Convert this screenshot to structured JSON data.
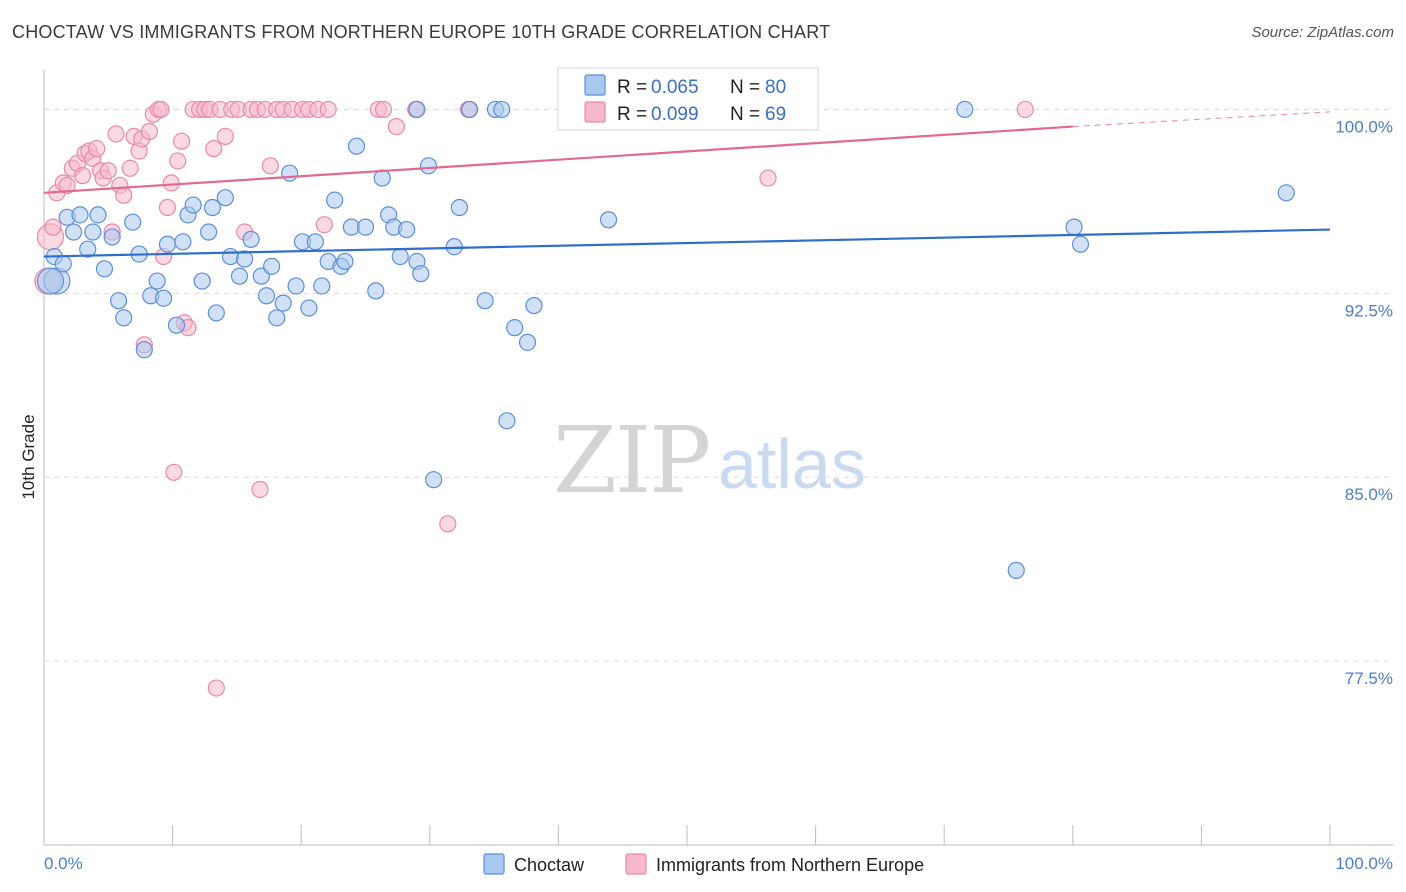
{
  "title": "CHOCTAW VS IMMIGRANTS FROM NORTHERN EUROPE 10TH GRADE CORRELATION CHART",
  "source": "Source: ZipAtlas.com",
  "watermark": {
    "zip": "ZIP",
    "atlas": "atlas"
  },
  "colors": {
    "choctaw_fill": "#a9c8f0",
    "choctaw_stroke": "#5b8fd8",
    "choctaw_line": "#2f6fc9",
    "immig_fill": "#f6b9cc",
    "immig_stroke": "#e98aa8",
    "immig_line": "#e2698f",
    "grid": "#dcdcdc",
    "tick_text": "#4a7fc9"
  },
  "legend": {
    "rows": [
      {
        "r_label": "R =",
        "r_value": "0.065",
        "n_label": "N =",
        "n_value": "80"
      },
      {
        "r_label": "R =",
        "r_value": "0.099",
        "n_label": "N =",
        "n_value": "69"
      }
    ]
  },
  "bottom_legend": [
    "Choctaw",
    "Immigrants from Northern Europe"
  ],
  "chart_data": {
    "type": "scatter",
    "title": "CHOCTAW VS IMMIGRANTS FROM NORTHERN EUROPE 10TH GRADE CORRELATION CHART",
    "xlabel": "",
    "ylabel": "10th Grade",
    "xlim": [
      0,
      100
    ],
    "ylim": [
      70.0,
      101.2
    ],
    "x_tick_labels": [
      "0.0%",
      "100.0%"
    ],
    "y_ticks": [
      77.5,
      85.0,
      92.5,
      100.0
    ],
    "y_tick_labels": [
      "77.5%",
      "85.0%",
      "92.5%",
      "100.0%"
    ],
    "grid": true,
    "legend_position": "top-center",
    "series": [
      {
        "name": "Choctaw",
        "r": 0.065,
        "n": 80,
        "trend": {
          "x": [
            0,
            100
          ],
          "y": [
            94.0,
            95.1
          ],
          "style": "solid"
        },
        "points": [
          [
            1.0,
            93.0
          ],
          [
            0.8,
            94.0
          ],
          [
            1.5,
            93.7
          ],
          [
            1.8,
            95.6
          ],
          [
            2.3,
            95.0
          ],
          [
            2.8,
            95.7
          ],
          [
            3.4,
            94.3
          ],
          [
            3.8,
            95.0
          ],
          [
            4.2,
            95.7
          ],
          [
            4.7,
            93.5
          ],
          [
            5.3,
            94.8
          ],
          [
            5.8,
            92.2
          ],
          [
            6.2,
            91.5
          ],
          [
            6.9,
            95.4
          ],
          [
            7.4,
            94.1
          ],
          [
            7.8,
            90.2
          ],
          [
            8.3,
            92.4
          ],
          [
            8.8,
            93.0
          ],
          [
            9.3,
            92.3
          ],
          [
            9.6,
            94.5
          ],
          [
            10.3,
            91.2
          ],
          [
            10.8,
            94.6
          ],
          [
            11.2,
            95.7
          ],
          [
            11.6,
            96.1
          ],
          [
            12.3,
            93.0
          ],
          [
            12.8,
            95.0
          ],
          [
            13.1,
            96.0
          ],
          [
            13.4,
            91.7
          ],
          [
            14.1,
            96.4
          ],
          [
            14.5,
            94.0
          ],
          [
            15.2,
            93.2
          ],
          [
            15.6,
            93.9
          ],
          [
            16.1,
            94.7
          ],
          [
            16.9,
            93.2
          ],
          [
            17.3,
            92.4
          ],
          [
            17.7,
            93.6
          ],
          [
            18.1,
            91.5
          ],
          [
            18.6,
            92.1
          ],
          [
            19.1,
            97.4
          ],
          [
            19.6,
            92.8
          ],
          [
            20.1,
            94.6
          ],
          [
            20.6,
            91.9
          ],
          [
            21.1,
            94.6
          ],
          [
            21.6,
            92.8
          ],
          [
            22.1,
            93.8
          ],
          [
            22.6,
            96.3
          ],
          [
            23.1,
            93.6
          ],
          [
            23.4,
            93.8
          ],
          [
            23.9,
            95.2
          ],
          [
            24.3,
            98.5
          ],
          [
            25.0,
            95.2
          ],
          [
            25.8,
            92.6
          ],
          [
            26.3,
            97.2
          ],
          [
            26.8,
            95.7
          ],
          [
            27.2,
            95.2
          ],
          [
            27.7,
            94.0
          ],
          [
            28.2,
            95.1
          ],
          [
            29.0,
            93.8
          ],
          [
            29.3,
            93.3
          ],
          [
            29.9,
            97.7
          ],
          [
            29.0,
            100.0
          ],
          [
            31.9,
            94.4
          ],
          [
            32.3,
            96.0
          ],
          [
            33.1,
            100.0
          ],
          [
            34.3,
            92.2
          ],
          [
            35.1,
            100.0
          ],
          [
            35.6,
            100.0
          ],
          [
            36.0,
            87.3
          ],
          [
            36.6,
            91.1
          ],
          [
            37.6,
            90.5
          ],
          [
            38.1,
            92.0
          ],
          [
            30.3,
            84.9
          ],
          [
            43.9,
            95.5
          ],
          [
            45.4,
            100.0
          ],
          [
            71.6,
            100.0
          ],
          [
            75.6,
            81.2
          ],
          [
            80.1,
            95.2
          ],
          [
            80.6,
            94.5
          ],
          [
            96.6,
            96.6
          ],
          [
            0.5,
            93.0
          ]
        ]
      },
      {
        "name": "Immigrants from Northern Europe",
        "r": 0.099,
        "n": 69,
        "trend": {
          "x": [
            0,
            80,
            100
          ],
          "y": [
            96.6,
            99.3,
            99.9
          ],
          "solid_until": 80
        },
        "points": [
          [
            0.3,
            93.0
          ],
          [
            0.5,
            94.8
          ],
          [
            0.7,
            95.2
          ],
          [
            1.0,
            96.6
          ],
          [
            1.5,
            97.0
          ],
          [
            1.8,
            96.9
          ],
          [
            2.2,
            97.6
          ],
          [
            2.6,
            97.8
          ],
          [
            3.0,
            97.3
          ],
          [
            3.2,
            98.2
          ],
          [
            3.5,
            98.3
          ],
          [
            3.8,
            98.0
          ],
          [
            4.1,
            98.4
          ],
          [
            4.4,
            97.5
          ],
          [
            4.6,
            97.2
          ],
          [
            5.0,
            97.5
          ],
          [
            5.3,
            95.0
          ],
          [
            5.6,
            99.0
          ],
          [
            5.9,
            96.9
          ],
          [
            6.2,
            96.5
          ],
          [
            6.7,
            97.6
          ],
          [
            7.0,
            98.9
          ],
          [
            7.4,
            98.3
          ],
          [
            7.6,
            98.8
          ],
          [
            7.8,
            90.4
          ],
          [
            8.2,
            99.1
          ],
          [
            8.5,
            99.8
          ],
          [
            8.9,
            100.0
          ],
          [
            9.1,
            100.0
          ],
          [
            9.3,
            94.0
          ],
          [
            9.6,
            96.0
          ],
          [
            9.9,
            97.0
          ],
          [
            10.1,
            85.2
          ],
          [
            10.4,
            97.9
          ],
          [
            10.7,
            98.7
          ],
          [
            10.9,
            91.3
          ],
          [
            11.2,
            91.1
          ],
          [
            11.6,
            100.0
          ],
          [
            12.1,
            100.0
          ],
          [
            12.5,
            100.0
          ],
          [
            12.9,
            100.0
          ],
          [
            13.2,
            98.4
          ],
          [
            13.4,
            76.4
          ],
          [
            13.7,
            100.0
          ],
          [
            14.1,
            98.9
          ],
          [
            14.6,
            100.0
          ],
          [
            15.1,
            100.0
          ],
          [
            15.6,
            95.0
          ],
          [
            16.1,
            100.0
          ],
          [
            16.6,
            100.0
          ],
          [
            16.8,
            84.5
          ],
          [
            17.2,
            100.0
          ],
          [
            17.6,
            97.7
          ],
          [
            18.1,
            100.0
          ],
          [
            18.6,
            100.0
          ],
          [
            19.3,
            100.0
          ],
          [
            20.1,
            100.0
          ],
          [
            20.6,
            100.0
          ],
          [
            21.3,
            100.0
          ],
          [
            21.8,
            95.3
          ],
          [
            22.1,
            100.0
          ],
          [
            26.0,
            100.0
          ],
          [
            26.4,
            100.0
          ],
          [
            27.4,
            99.3
          ],
          [
            28.9,
            100.0
          ],
          [
            31.4,
            83.1
          ],
          [
            33.0,
            100.0
          ],
          [
            56.3,
            97.2
          ],
          [
            76.3,
            100.0
          ]
        ]
      }
    ]
  }
}
